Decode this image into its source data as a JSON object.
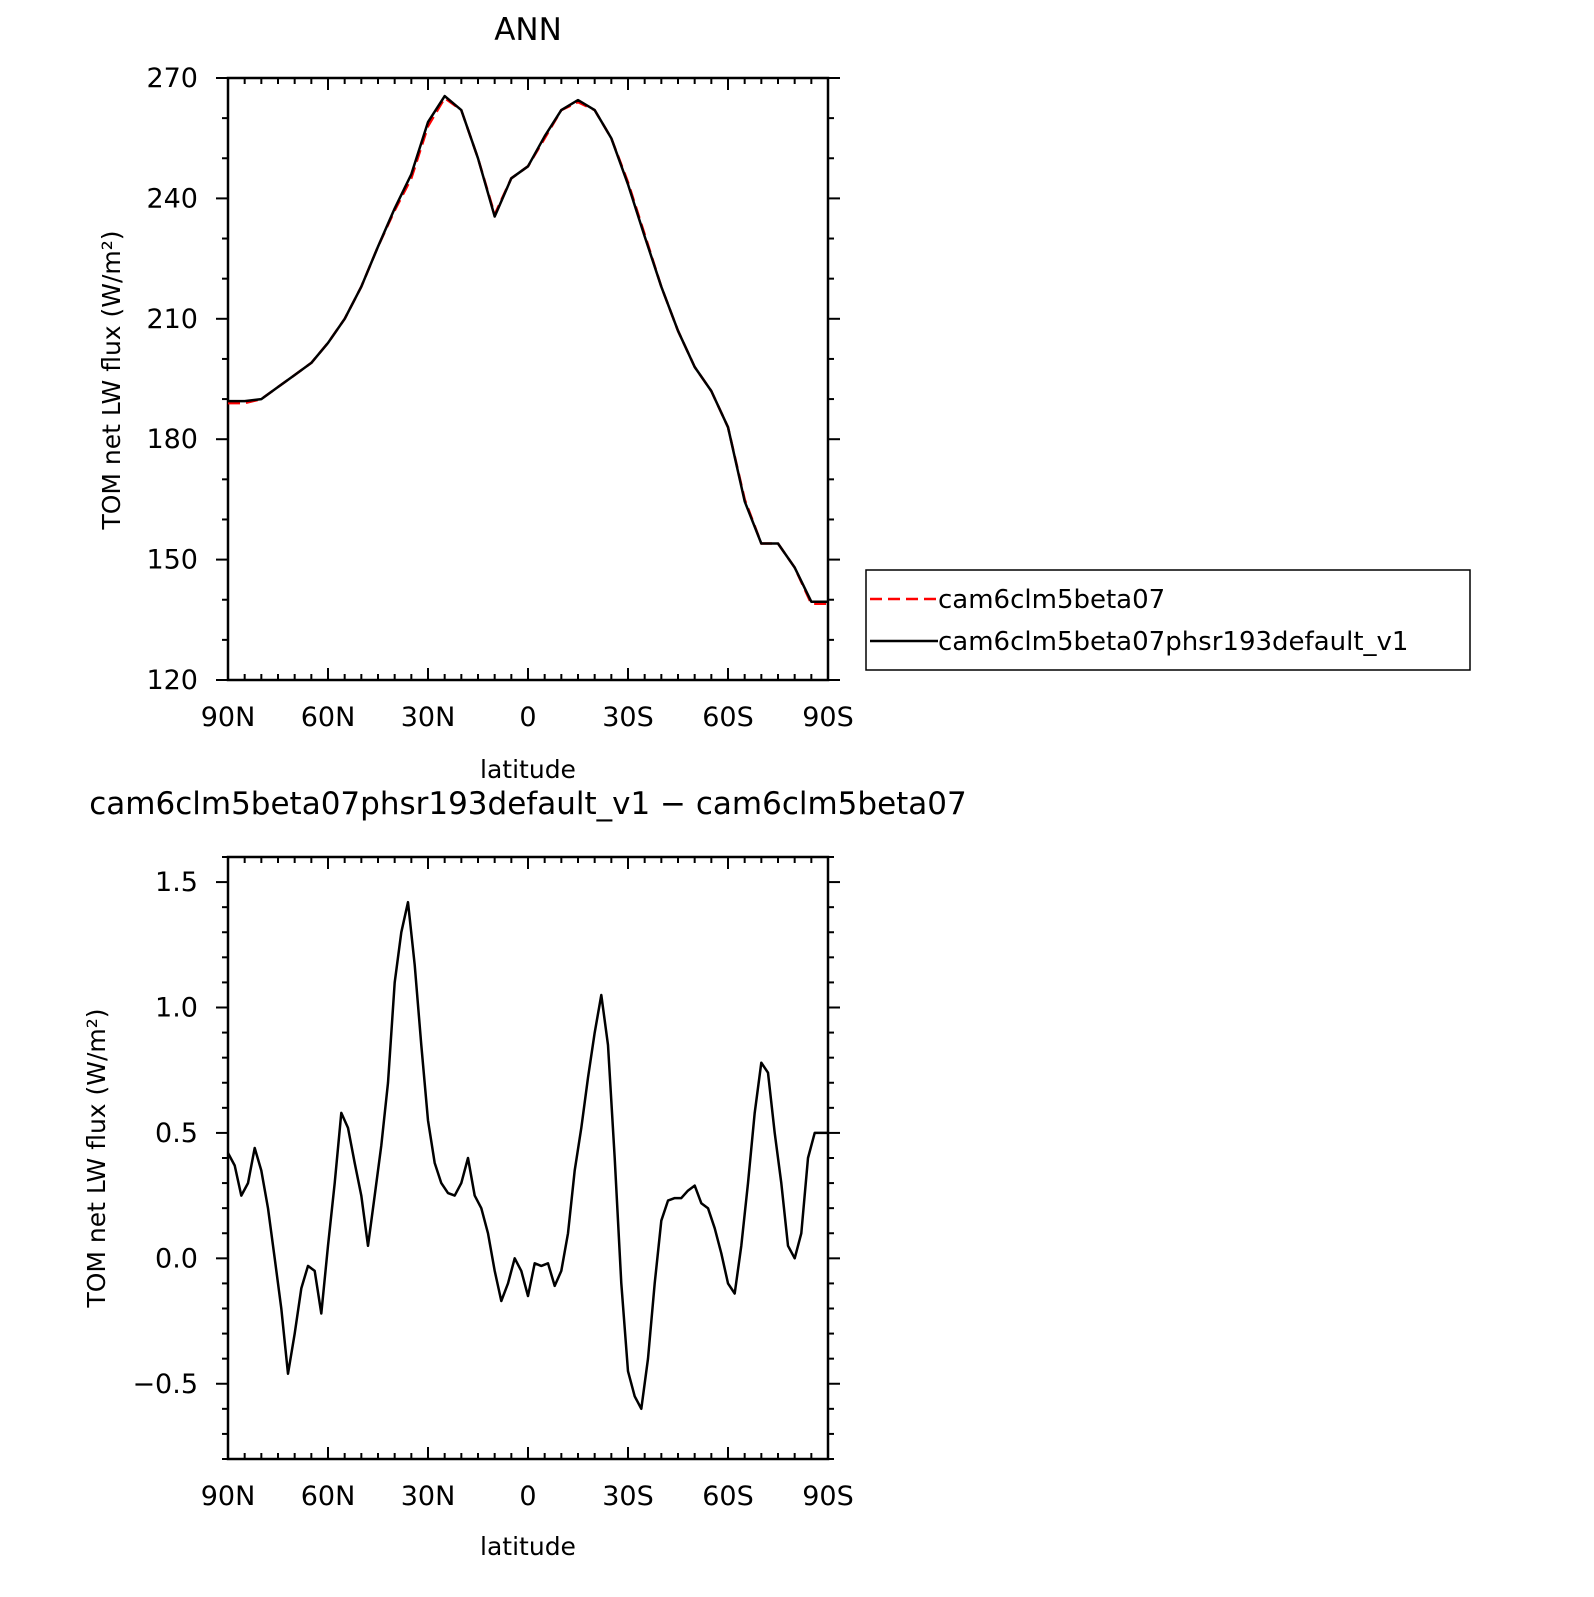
{
  "chart_data": [
    {
      "type": "line",
      "title": "ANN",
      "xlabel": "latitude",
      "ylabel": "TOM net LW flux (W/m²)",
      "xlim": [
        90,
        -90
      ],
      "ylim": [
        120,
        270
      ],
      "xticks": [
        "90N",
        "60N",
        "30N",
        "0",
        "30S",
        "60S",
        "90S"
      ],
      "yticks": [
        "120",
        "150",
        "180",
        "210",
        "240",
        "270"
      ],
      "legend": "right",
      "x": [
        90,
        85,
        80,
        75,
        70,
        65,
        60,
        55,
        50,
        45,
        40,
        35,
        30,
        25,
        20,
        15,
        10,
        5,
        0,
        -5,
        -10,
        -15,
        -20,
        -25,
        -30,
        -35,
        -40,
        -45,
        -50,
        -55,
        -60,
        -65,
        -70,
        -75,
        -80,
        -85,
        -90
      ],
      "series": [
        {
          "name": "cam6clm5beta07",
          "color": "#ff0000",
          "dash": "dashed",
          "values": [
            189,
            189,
            190,
            193,
            196,
            199,
            204,
            210,
            218,
            228,
            237,
            245,
            258,
            265,
            262,
            250,
            236,
            245,
            248,
            255,
            262,
            264,
            262,
            255,
            244,
            231,
            218,
            207,
            198,
            192,
            183,
            165,
            154,
            154,
            148,
            139,
            139
          ]
        },
        {
          "name": "cam6clm5beta07phsr193default_v1",
          "color": "#000000",
          "dash": "solid",
          "values": [
            189.5,
            189.5,
            190,
            193,
            196,
            199,
            204,
            210,
            218,
            228,
            237.5,
            246,
            259,
            265.5,
            262,
            250,
            235.5,
            245,
            248,
            255.5,
            262,
            264.5,
            262,
            255,
            243.5,
            230.5,
            218,
            207,
            198,
            192,
            183,
            164.5,
            154,
            154,
            148,
            139.5,
            139.5
          ]
        }
      ]
    },
    {
      "type": "line",
      "title": "cam6clm5beta07phsr193default_v1 − cam6clm5beta07",
      "xlabel": "latitude",
      "ylabel": "TOM net LW flux (W/m²)",
      "xlim": [
        90,
        -90
      ],
      "ylim": [
        -0.8,
        1.6
      ],
      "xticks": [
        "90N",
        "60N",
        "30N",
        "0",
        "30S",
        "60S",
        "90S"
      ],
      "yticks": [
        "−0.5",
        "0.0",
        "0.5",
        "1.0",
        "1.5"
      ],
      "x": [
        90,
        88,
        86,
        84,
        82,
        80,
        78,
        76,
        74,
        72,
        70,
        68,
        66,
        64,
        62,
        60,
        58,
        56,
        54,
        52,
        50,
        48,
        46,
        44,
        42,
        40,
        38,
        36,
        34,
        32,
        30,
        28,
        26,
        24,
        22,
        20,
        18,
        16,
        14,
        12,
        10,
        8,
        6,
        4,
        2,
        0,
        -2,
        -4,
        -6,
        -8,
        -10,
        -12,
        -14,
        -16,
        -18,
        -20,
        -22,
        -24,
        -26,
        -28,
        -30,
        -32,
        -34,
        -36,
        -38,
        -40,
        -42,
        -44,
        -46,
        -48,
        -50,
        -52,
        -54,
        -56,
        -58,
        -60,
        -62,
        -64,
        -66,
        -68,
        -70,
        -72,
        -74,
        -76,
        -78,
        -80,
        -82,
        -84,
        -86,
        -88,
        -90
      ],
      "series": [
        {
          "name": "",
          "color": "#000000",
          "values": [
            0.42,
            0.37,
            0.25,
            0.3,
            0.44,
            0.35,
            0.2,
            0.0,
            -0.2,
            -0.46,
            -0.3,
            -0.12,
            -0.03,
            -0.05,
            -0.22,
            0.05,
            0.3,
            0.58,
            0.52,
            0.38,
            0.25,
            0.05,
            0.25,
            0.45,
            0.7,
            1.1,
            1.3,
            1.42,
            1.17,
            0.85,
            0.55,
            0.38,
            0.3,
            0.26,
            0.25,
            0.3,
            0.4,
            0.25,
            0.2,
            0.1,
            -0.05,
            -0.17,
            -0.1,
            0.0,
            -0.05,
            -0.15,
            -0.02,
            -0.03,
            -0.02,
            -0.11,
            -0.05,
            0.1,
            0.35,
            0.52,
            0.72,
            0.9,
            1.05,
            0.85,
            0.4,
            -0.1,
            -0.45,
            -0.55,
            -0.6,
            -0.4,
            -0.1,
            0.15,
            0.23,
            0.24,
            0.24,
            0.27,
            0.29,
            0.22,
            0.2,
            0.12,
            0.02,
            -0.1,
            -0.14,
            0.05,
            0.3,
            0.58,
            0.78,
            0.74,
            0.5,
            0.3,
            0.05,
            0.0,
            0.1,
            0.4,
            0.5,
            0.5,
            0.5
          ]
        }
      ]
    }
  ]
}
